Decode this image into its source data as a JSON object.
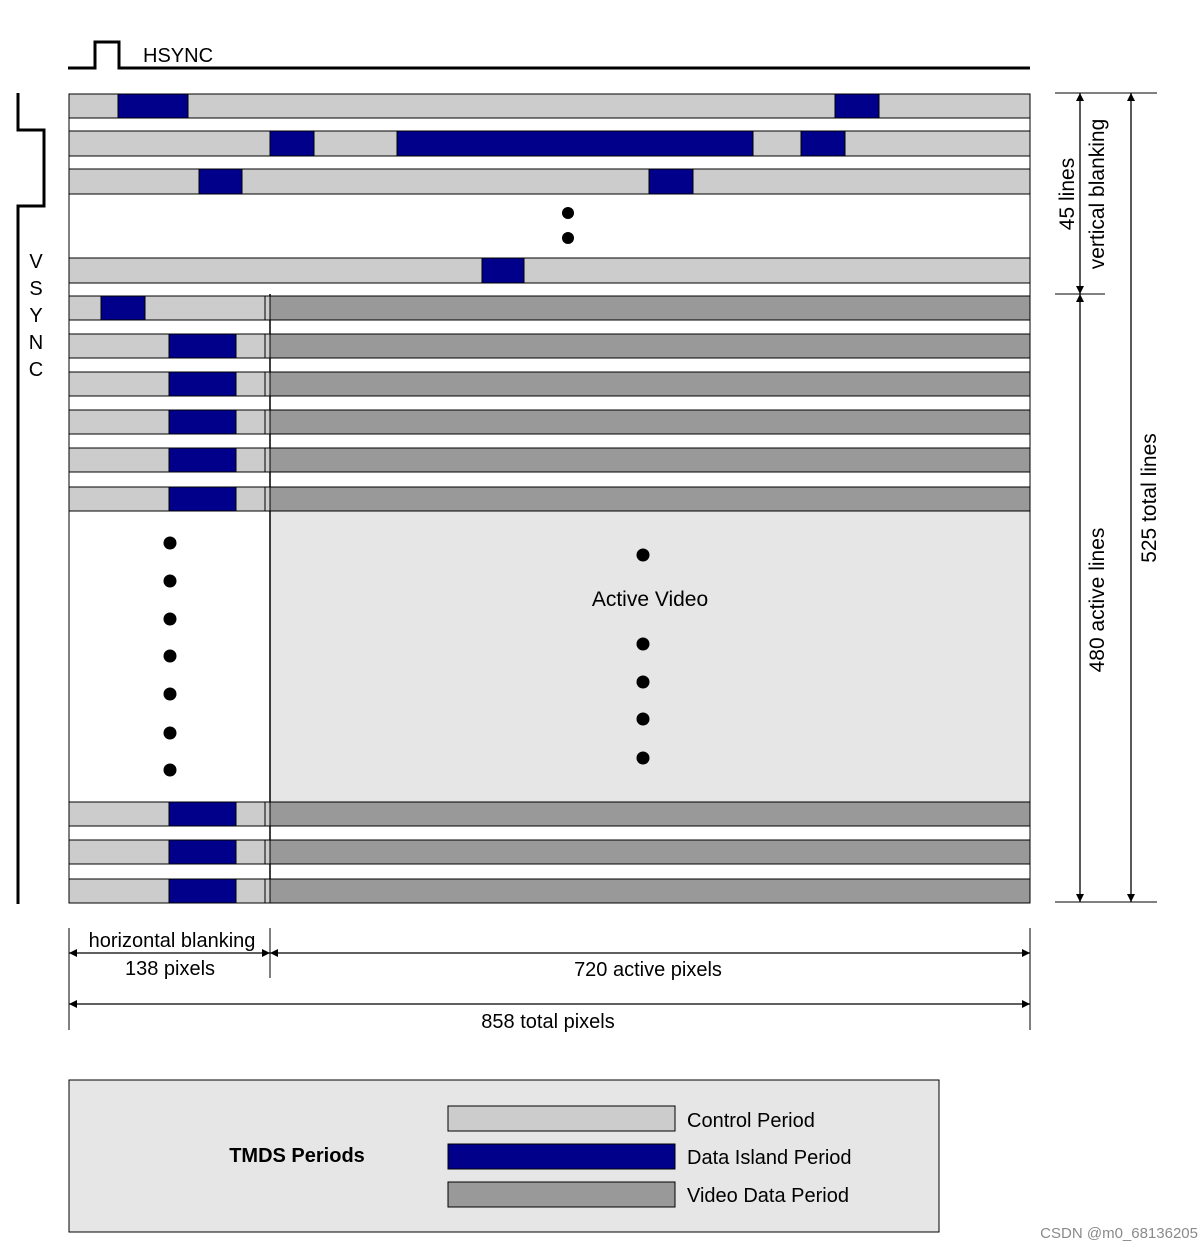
{
  "signals": {
    "hsync": "HSYNC",
    "vsync_letters": [
      "V",
      "S",
      "Y",
      "N",
      "C"
    ]
  },
  "labels": {
    "active_video": "Active Video",
    "vertical_count": "45 lines",
    "vertical_name": "vertical blanking",
    "active_lines": "480 active lines",
    "total_lines": "525 total lines",
    "horizontal_name": "horizontal blanking",
    "horizontal_count": "138 pixels",
    "active_pixels": "720 active pixels",
    "total_pixels": "858 total pixels"
  },
  "legend": {
    "title": "TMDS Periods",
    "items": [
      {
        "key": "control",
        "label": "Control Period"
      },
      {
        "key": "data_island",
        "label": "Data Island Period"
      },
      {
        "key": "video",
        "label": "Video Data Period"
      }
    ]
  },
  "colors": {
    "control": "#cccccc",
    "data_island": "#00008b",
    "video": "#999999",
    "active_region": "#e6e6e6",
    "legend_bg": "#e6e6e6"
  },
  "watermark": "CSDN @m0_68136205"
}
